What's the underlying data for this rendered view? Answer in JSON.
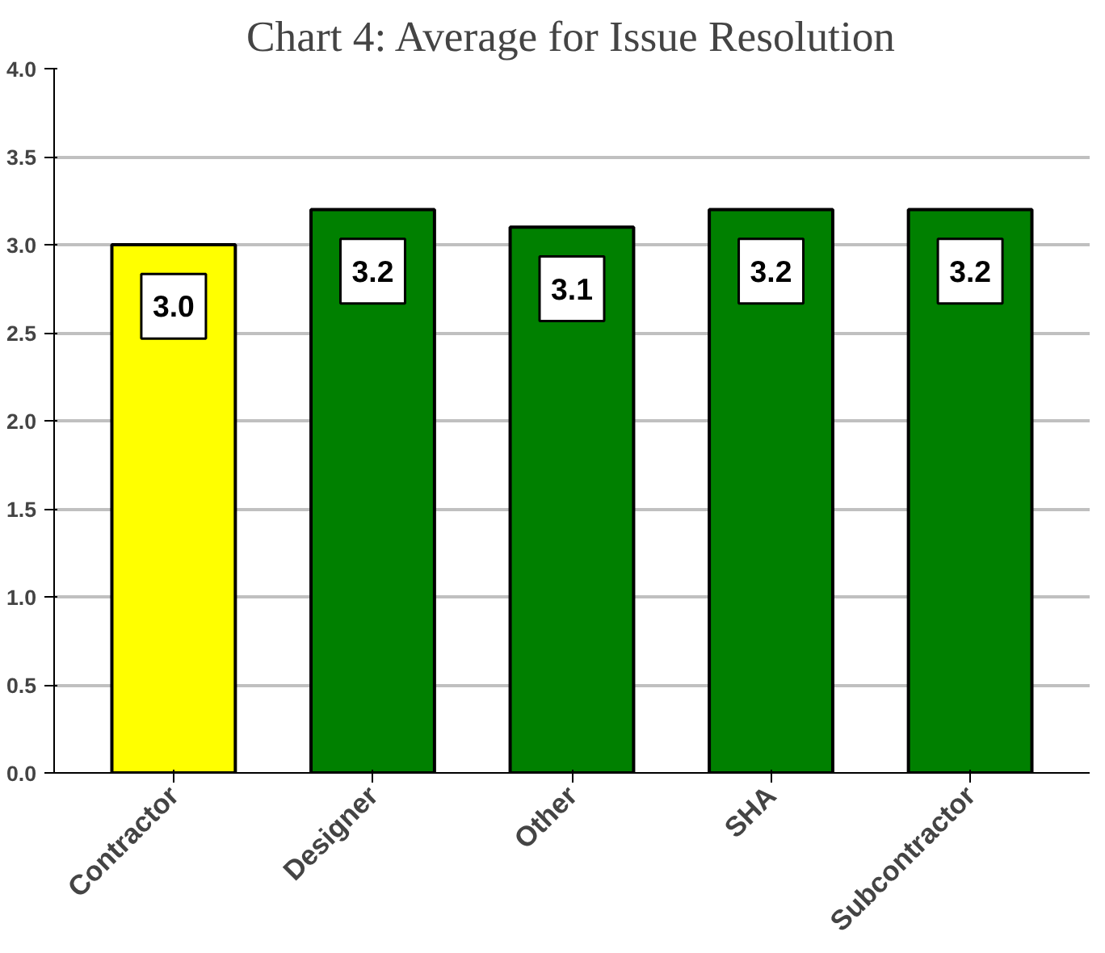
{
  "chart_data": {
    "type": "bar",
    "title": "Chart 4: Average for Issue Resolution",
    "categories": [
      "Contractor",
      "Designer",
      "Other",
      "SHA",
      "Subcontractor"
    ],
    "values": [
      3.0,
      3.2,
      3.1,
      3.2,
      3.2
    ],
    "colors": [
      "#ffff00",
      "#008000",
      "#008000",
      "#008000",
      "#008000"
    ],
    "ylim": [
      0,
      4
    ],
    "yticks": [
      {
        "value": 0,
        "label": "0.0"
      },
      {
        "value": 0.5,
        "label": "0.5"
      },
      {
        "value": 1,
        "label": "1.0"
      },
      {
        "value": 1.5,
        "label": "1.5"
      },
      {
        "value": 2,
        "label": "2.0"
      },
      {
        "value": 2.5,
        "label": "2.5"
      },
      {
        "value": 3,
        "label": "3.0"
      },
      {
        "value": 3.5,
        "label": "3.5"
      },
      {
        "value": 4,
        "label": "4.0"
      }
    ],
    "value_labels": [
      "3.0",
      "3.2",
      "3.1",
      "3.2",
      "3.2"
    ],
    "grid": "y"
  }
}
